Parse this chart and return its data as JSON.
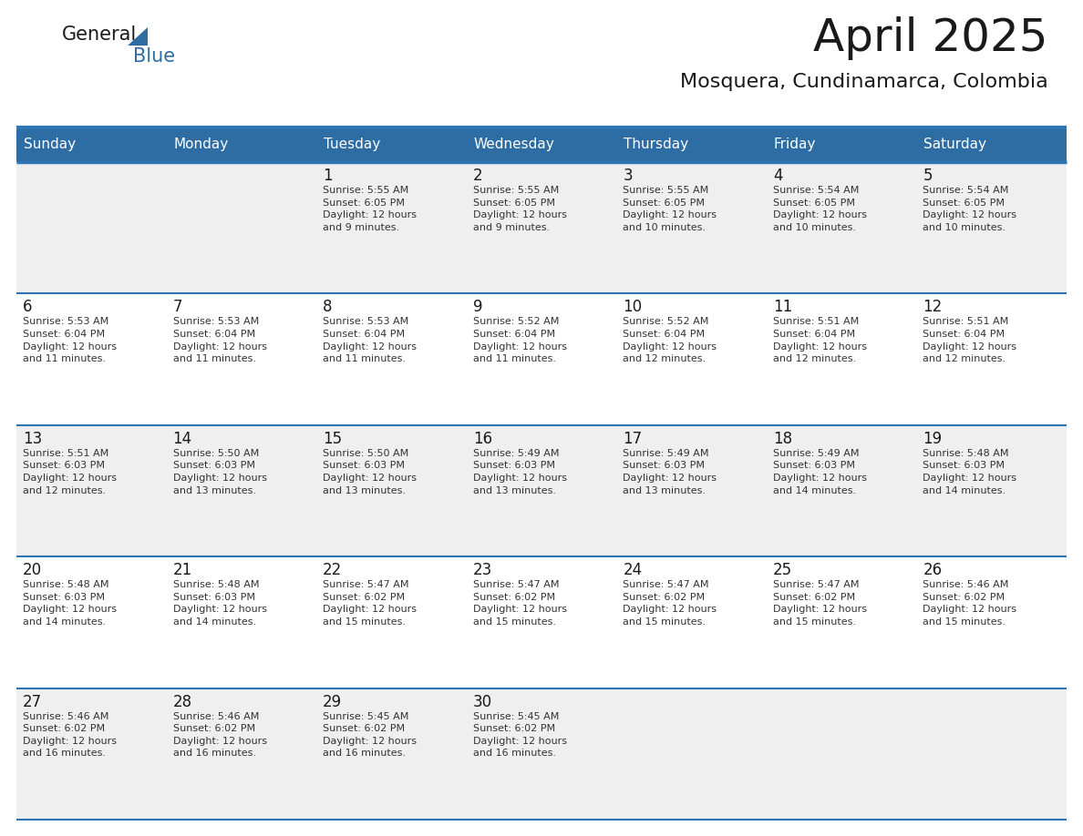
{
  "title": "April 2025",
  "subtitle": "Mosquera, Cundinamarca, Colombia",
  "days_of_week": [
    "Sunday",
    "Monday",
    "Tuesday",
    "Wednesday",
    "Thursday",
    "Friday",
    "Saturday"
  ],
  "header_bg": "#2E6DA4",
  "header_text": "#FFFFFF",
  "cell_bg_light": "#EFEFEF",
  "cell_bg_white": "#FFFFFF",
  "divider_color": "#2E75B6",
  "text_color": "#333333",
  "day_num_color": "#1A1A1A",
  "calendar_data": [
    [
      {
        "day": null,
        "text": ""
      },
      {
        "day": null,
        "text": ""
      },
      {
        "day": 1,
        "text": "Sunrise: 5:55 AM\nSunset: 6:05 PM\nDaylight: 12 hours\nand 9 minutes."
      },
      {
        "day": 2,
        "text": "Sunrise: 5:55 AM\nSunset: 6:05 PM\nDaylight: 12 hours\nand 9 minutes."
      },
      {
        "day": 3,
        "text": "Sunrise: 5:55 AM\nSunset: 6:05 PM\nDaylight: 12 hours\nand 10 minutes."
      },
      {
        "day": 4,
        "text": "Sunrise: 5:54 AM\nSunset: 6:05 PM\nDaylight: 12 hours\nand 10 minutes."
      },
      {
        "day": 5,
        "text": "Sunrise: 5:54 AM\nSunset: 6:05 PM\nDaylight: 12 hours\nand 10 minutes."
      }
    ],
    [
      {
        "day": 6,
        "text": "Sunrise: 5:53 AM\nSunset: 6:04 PM\nDaylight: 12 hours\nand 11 minutes."
      },
      {
        "day": 7,
        "text": "Sunrise: 5:53 AM\nSunset: 6:04 PM\nDaylight: 12 hours\nand 11 minutes."
      },
      {
        "day": 8,
        "text": "Sunrise: 5:53 AM\nSunset: 6:04 PM\nDaylight: 12 hours\nand 11 minutes."
      },
      {
        "day": 9,
        "text": "Sunrise: 5:52 AM\nSunset: 6:04 PM\nDaylight: 12 hours\nand 11 minutes."
      },
      {
        "day": 10,
        "text": "Sunrise: 5:52 AM\nSunset: 6:04 PM\nDaylight: 12 hours\nand 12 minutes."
      },
      {
        "day": 11,
        "text": "Sunrise: 5:51 AM\nSunset: 6:04 PM\nDaylight: 12 hours\nand 12 minutes."
      },
      {
        "day": 12,
        "text": "Sunrise: 5:51 AM\nSunset: 6:04 PM\nDaylight: 12 hours\nand 12 minutes."
      }
    ],
    [
      {
        "day": 13,
        "text": "Sunrise: 5:51 AM\nSunset: 6:03 PM\nDaylight: 12 hours\nand 12 minutes."
      },
      {
        "day": 14,
        "text": "Sunrise: 5:50 AM\nSunset: 6:03 PM\nDaylight: 12 hours\nand 13 minutes."
      },
      {
        "day": 15,
        "text": "Sunrise: 5:50 AM\nSunset: 6:03 PM\nDaylight: 12 hours\nand 13 minutes."
      },
      {
        "day": 16,
        "text": "Sunrise: 5:49 AM\nSunset: 6:03 PM\nDaylight: 12 hours\nand 13 minutes."
      },
      {
        "day": 17,
        "text": "Sunrise: 5:49 AM\nSunset: 6:03 PM\nDaylight: 12 hours\nand 13 minutes."
      },
      {
        "day": 18,
        "text": "Sunrise: 5:49 AM\nSunset: 6:03 PM\nDaylight: 12 hours\nand 14 minutes."
      },
      {
        "day": 19,
        "text": "Sunrise: 5:48 AM\nSunset: 6:03 PM\nDaylight: 12 hours\nand 14 minutes."
      }
    ],
    [
      {
        "day": 20,
        "text": "Sunrise: 5:48 AM\nSunset: 6:03 PM\nDaylight: 12 hours\nand 14 minutes."
      },
      {
        "day": 21,
        "text": "Sunrise: 5:48 AM\nSunset: 6:03 PM\nDaylight: 12 hours\nand 14 minutes."
      },
      {
        "day": 22,
        "text": "Sunrise: 5:47 AM\nSunset: 6:02 PM\nDaylight: 12 hours\nand 15 minutes."
      },
      {
        "day": 23,
        "text": "Sunrise: 5:47 AM\nSunset: 6:02 PM\nDaylight: 12 hours\nand 15 minutes."
      },
      {
        "day": 24,
        "text": "Sunrise: 5:47 AM\nSunset: 6:02 PM\nDaylight: 12 hours\nand 15 minutes."
      },
      {
        "day": 25,
        "text": "Sunrise: 5:47 AM\nSunset: 6:02 PM\nDaylight: 12 hours\nand 15 minutes."
      },
      {
        "day": 26,
        "text": "Sunrise: 5:46 AM\nSunset: 6:02 PM\nDaylight: 12 hours\nand 15 minutes."
      }
    ],
    [
      {
        "day": 27,
        "text": "Sunrise: 5:46 AM\nSunset: 6:02 PM\nDaylight: 12 hours\nand 16 minutes."
      },
      {
        "day": 28,
        "text": "Sunrise: 5:46 AM\nSunset: 6:02 PM\nDaylight: 12 hours\nand 16 minutes."
      },
      {
        "day": 29,
        "text": "Sunrise: 5:45 AM\nSunset: 6:02 PM\nDaylight: 12 hours\nand 16 minutes."
      },
      {
        "day": 30,
        "text": "Sunrise: 5:45 AM\nSunset: 6:02 PM\nDaylight: 12 hours\nand 16 minutes."
      },
      {
        "day": null,
        "text": ""
      },
      {
        "day": null,
        "text": ""
      },
      {
        "day": null,
        "text": ""
      }
    ]
  ],
  "logo_text_general": "General",
  "logo_text_blue": "Blue",
  "logo_color_general": "#1A1A1A",
  "logo_color_blue": "#2E6DA4",
  "title_fontsize": 36,
  "subtitle_fontsize": 16,
  "header_fontsize": 11,
  "day_num_fontsize": 12,
  "cell_text_fontsize": 8
}
